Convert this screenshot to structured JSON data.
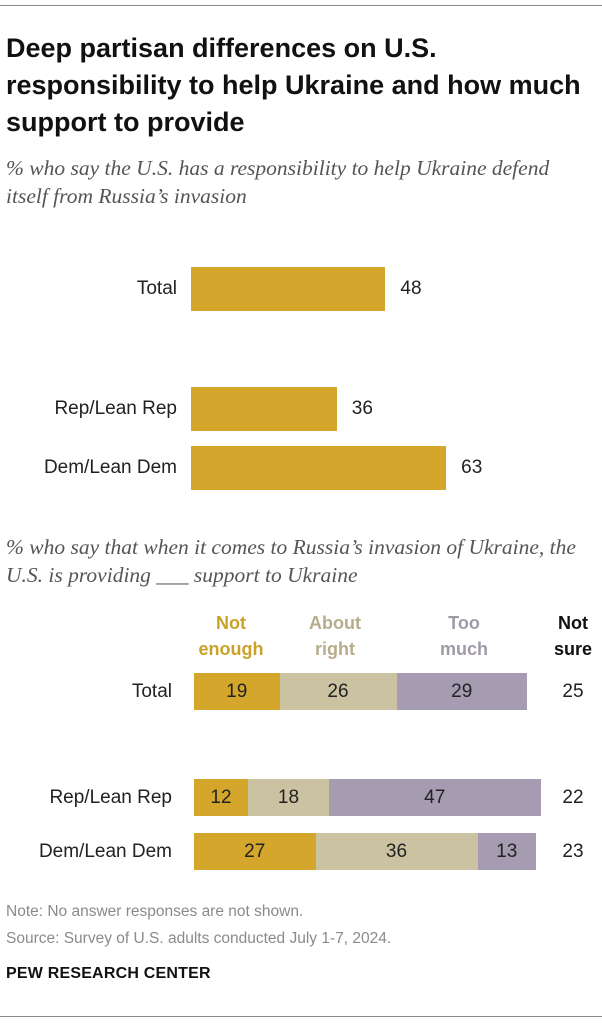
{
  "title": "Deep partisan differences on U.S. responsibility to help Ukraine and how much support to provide",
  "chart_data": [
    {
      "type": "bar",
      "subtitle": "% who say the U.S. has a responsibility to help Ukraine defend itself from Russia’s invasion",
      "categories": [
        "Total",
        "Rep/Lean Rep",
        "Dem/Lean Dem"
      ],
      "values": [
        48,
        36,
        63
      ],
      "color": "#d4a72c"
    },
    {
      "type": "bar",
      "stacked": true,
      "subtitle": "% who say that when it comes to Russia’s invasion of Ukraine, the U.S. is providing ___ support to Ukraine",
      "categories": [
        "Total",
        "Rep/Lean Rep",
        "Dem/Lean Dem"
      ],
      "series": [
        {
          "name": "Not enough",
          "values": [
            19,
            12,
            27
          ],
          "color": "#d4a72c"
        },
        {
          "name": "About right",
          "values": [
            26,
            18,
            36
          ],
          "color": "#cbc2a1"
        },
        {
          "name": "Too much",
          "values": [
            29,
            47,
            13
          ],
          "color": "#a59cb2"
        }
      ],
      "not_sure": {
        "name": "Not sure",
        "values": [
          25,
          22,
          23
        ]
      },
      "headers": [
        {
          "line1": "Not",
          "line2": "enough",
          "color": "#c9a227"
        },
        {
          "line1": "About",
          "line2": "right",
          "color": "#b6ad8b"
        },
        {
          "line1": "Too",
          "line2": "much",
          "color": "#a09aa8"
        },
        {
          "line1": "Not",
          "line2": "sure",
          "color": "#111111"
        }
      ]
    }
  ],
  "note": "Note: No answer responses are not shown.",
  "source": "Source: Survey of U.S. adults conducted July 1-7, 2024.",
  "brand": "PEW RESEARCH CENTER"
}
